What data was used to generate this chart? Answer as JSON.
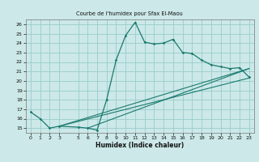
{
  "title": "Courbe de l'humidex pour Sfax El-Maou",
  "xlabel": "Humidex (Indice chaleur)",
  "background_color": "#cce8e8",
  "grid_color": "#99cccc",
  "line_color": "#1a7a6e",
  "xlim": [
    -0.5,
    23.5
  ],
  "ylim": [
    14.5,
    26.5
  ],
  "xticks": [
    0,
    1,
    2,
    3,
    5,
    6,
    7,
    8,
    9,
    10,
    11,
    12,
    13,
    14,
    15,
    16,
    17,
    18,
    19,
    20,
    21,
    22,
    23
  ],
  "yticks": [
    15,
    16,
    17,
    18,
    19,
    20,
    21,
    22,
    23,
    24,
    25,
    26
  ],
  "line1_x": [
    0,
    1,
    2,
    3,
    5,
    6,
    7,
    8,
    9,
    10,
    11,
    12,
    13,
    14,
    15,
    16,
    17,
    18,
    19,
    20,
    21,
    22,
    23
  ],
  "line1_y": [
    16.7,
    16.0,
    15.0,
    15.2,
    15.1,
    15.0,
    14.8,
    18.0,
    22.2,
    24.8,
    26.2,
    24.1,
    23.9,
    24.0,
    24.4,
    23.0,
    22.9,
    22.2,
    21.7,
    21.5,
    21.3,
    21.4,
    20.4
  ],
  "line2_x": [
    3,
    23
  ],
  "line2_y": [
    15.2,
    21.3
  ],
  "line3_x": [
    3,
    23
  ],
  "line3_y": [
    15.2,
    20.3
  ],
  "line4_x": [
    6,
    23
  ],
  "line4_y": [
    15.0,
    21.3
  ]
}
